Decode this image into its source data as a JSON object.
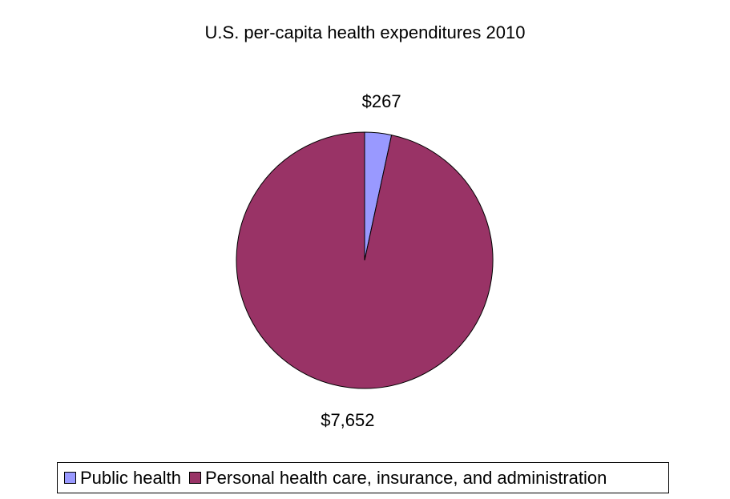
{
  "chart_data": {
    "type": "pie",
    "title": "U.S. per-capita health expenditures 2010",
    "categories": [
      "Public health",
      "Personal health care, insurance, and administration"
    ],
    "values": [
      267,
      7652
    ],
    "data_labels": [
      "$267",
      "$7,652"
    ],
    "colors": [
      "#9999ff",
      "#993366"
    ],
    "legend_position": "bottom",
    "start_angle": "12 o'clock, clockwise"
  }
}
